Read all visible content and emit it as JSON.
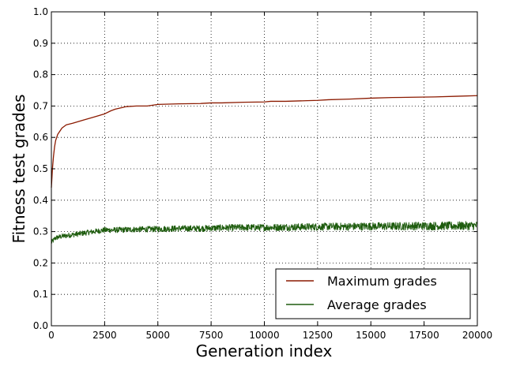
{
  "chart_data": {
    "type": "line",
    "title": "",
    "xlabel": "Generation index",
    "ylabel": "Fitness test grades",
    "xlim": [
      0,
      20000
    ],
    "ylim": [
      0.0,
      1.0
    ],
    "xticks": [
      "0",
      "2500",
      "5000",
      "7500",
      "10000",
      "12500",
      "15000",
      "17500",
      "20000"
    ],
    "yticks": [
      "0.0",
      "0.1",
      "0.2",
      "0.3",
      "0.4",
      "0.5",
      "0.6",
      "0.7",
      "0.8",
      "0.9",
      "1.0"
    ],
    "grid": true,
    "legend_position": "bottom-right",
    "series": [
      {
        "name": "Maximum grades",
        "color": "#8b1a00",
        "x": [
          0,
          50,
          100,
          150,
          200,
          300,
          400,
          500,
          700,
          1000,
          1250,
          1500,
          2000,
          2500,
          2800,
          3000,
          3500,
          4000,
          4500,
          5000,
          6000,
          7000,
          7500,
          8000,
          9000,
          10000,
          10300,
          11000,
          12000,
          12500,
          13000,
          14000,
          15000,
          16000,
          17000,
          18000,
          19000,
          20000
        ],
        "y": [
          0.44,
          0.5,
          0.54,
          0.57,
          0.59,
          0.61,
          0.62,
          0.63,
          0.64,
          0.645,
          0.65,
          0.655,
          0.665,
          0.675,
          0.685,
          0.69,
          0.698,
          0.7,
          0.7,
          0.705,
          0.707,
          0.708,
          0.71,
          0.71,
          0.712,
          0.713,
          0.715,
          0.715,
          0.717,
          0.718,
          0.72,
          0.722,
          0.725,
          0.727,
          0.728,
          0.729,
          0.731,
          0.733
        ]
      },
      {
        "name": "Average grades",
        "color": "#1e5c0e",
        "x": [
          0,
          200,
          500,
          1000,
          1500,
          2000,
          2500,
          3000,
          4000,
          5000,
          6000,
          7000,
          7500,
          8000,
          9000,
          10000,
          11000,
          12000,
          12500,
          13000,
          14000,
          15000,
          16000,
          17000,
          17500,
          18000,
          19000,
          20000
        ],
        "y": [
          0.265,
          0.28,
          0.285,
          0.29,
          0.295,
          0.3,
          0.305,
          0.305,
          0.307,
          0.308,
          0.31,
          0.31,
          0.311,
          0.312,
          0.313,
          0.313,
          0.314,
          0.315,
          0.315,
          0.316,
          0.316,
          0.317,
          0.317,
          0.318,
          0.318,
          0.318,
          0.318,
          0.319
        ]
      }
    ]
  }
}
